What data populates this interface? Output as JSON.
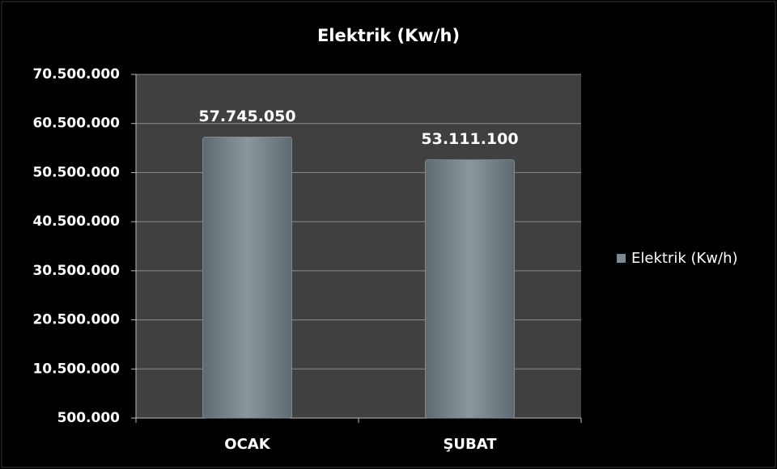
{
  "chart_data": {
    "type": "bar",
    "title": "Elektrik (Kw/h)",
    "categories": [
      "OCAK",
      "ŞUBAT"
    ],
    "series": [
      {
        "name": "Elektrik (Kw/h)",
        "color": "#7d8b91",
        "values": [
          57745050,
          53111100
        ],
        "value_labels": [
          "57.745.050",
          "53.111.100"
        ]
      }
    ],
    "ylim": [
      500000,
      70500000
    ],
    "yticks": [
      {
        "value": 500000,
        "label": "500.000"
      },
      {
        "value": 10500000,
        "label": "10.500.000"
      },
      {
        "value": 20500000,
        "label": "20.500.000"
      },
      {
        "value": 30500000,
        "label": "30.500.000"
      },
      {
        "value": 40500000,
        "label": "40.500.000"
      },
      {
        "value": 50500000,
        "label": "50.500.000"
      },
      {
        "value": 60500000,
        "label": "60.500.000"
      },
      {
        "value": 70500000,
        "label": "70.500.000"
      }
    ],
    "grid": true,
    "legend": "right"
  }
}
